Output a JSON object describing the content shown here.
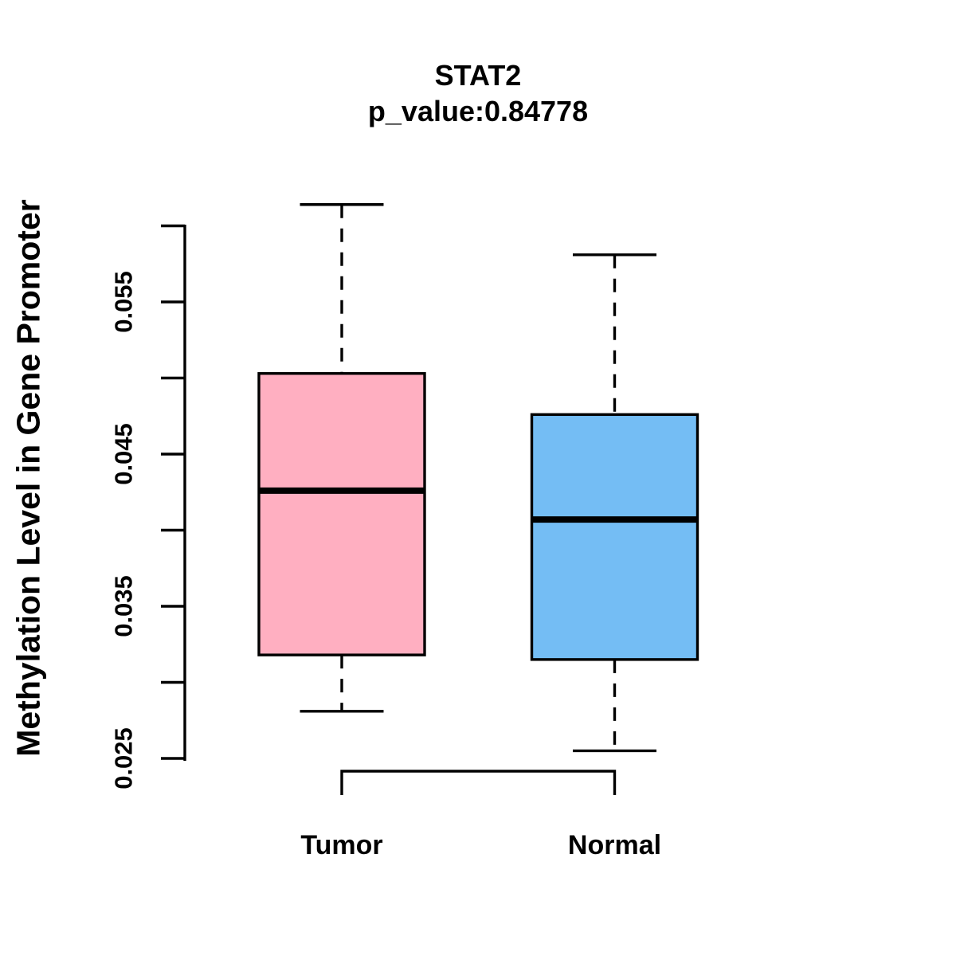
{
  "page": {
    "background_color": "#FFFFFF",
    "text_color": "#000000"
  },
  "chart_data": {
    "type": "boxplot",
    "title": "STAT2",
    "subtitle": "p_value:0.84778",
    "ylabel": "Methylation Level in Gene Promoter",
    "xlabel": "",
    "categories": [
      "Tumor",
      "Normal"
    ],
    "series": [
      {
        "name": "Tumor",
        "fill_color": "#FFAFC1",
        "stats": {
          "min": 0.0281,
          "q1": 0.0318,
          "median": 0.0426,
          "q3": 0.0503,
          "max": 0.0614
        }
      },
      {
        "name": "Normal",
        "fill_color": "#74BDF4",
        "stats": {
          "min": 0.0255,
          "q1": 0.0315,
          "median": 0.0407,
          "q3": 0.0476,
          "max": 0.0581
        }
      }
    ],
    "y_axis": {
      "ticks": [
        0.025,
        0.03,
        0.035,
        0.04,
        0.045,
        0.05,
        0.055,
        0.06
      ],
      "labeled_ticks": [
        0.025,
        0.035,
        0.045,
        0.055
      ],
      "range": [
        0.0248,
        0.0601
      ],
      "tick_labels": [
        "0.025",
        "0.035",
        "0.045",
        "0.055"
      ]
    },
    "x_axis": {
      "labels": [
        "Tumor",
        "Normal"
      ]
    },
    "styles": {
      "box_border_color": "#000000",
      "median_color": "#000000",
      "whisker_color": "#000000",
      "whisker_style": "dashed",
      "grid": "off",
      "legend": "none"
    }
  }
}
